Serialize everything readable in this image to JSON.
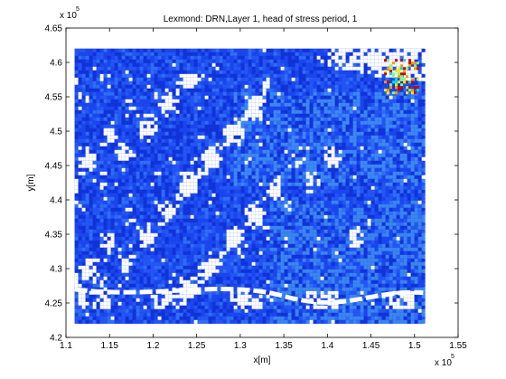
{
  "chart_data": {
    "type": "heatmap",
    "title": "Lexmond: DRN,Layer 1, head of stress period, 1",
    "xlabel": "x[m]",
    "ylabel": "y[m]",
    "xlim": [
      110000,
      155000
    ],
    "ylim": [
      420000,
      465000
    ],
    "x_ticks": [
      1.1,
      1.15,
      1.2,
      1.25,
      1.3,
      1.35,
      1.4,
      1.45,
      1.5,
      1.55
    ],
    "x_tick_labels": [
      "1.1",
      "1.15",
      "1.2",
      "1.25",
      "1.3",
      "1.35",
      "1.4",
      "1.45",
      "1.5",
      "1.55"
    ],
    "y_ticks": [
      4.2,
      4.25,
      4.3,
      4.35,
      4.4,
      4.45,
      4.5,
      4.55,
      4.6,
      4.65
    ],
    "y_tick_labels": [
      "4.2",
      "4.25",
      "4.3",
      "4.35",
      "4.4",
      "4.45",
      "4.5",
      "4.55",
      "4.6",
      "4.65"
    ],
    "x_exponent": "x 10",
    "x_exponent_power": "5",
    "y_exponent": "x 10",
    "y_exponent_power": "5",
    "data_extent": {
      "x": [
        111000,
        151000
      ],
      "y": [
        422000,
        462000
      ]
    },
    "colormap": "jet",
    "dominant_color": "#1a3fe8",
    "no_data_color": "#ffffff",
    "grid": false,
    "hotspot_region": {
      "x": [
        146500,
        150500
      ],
      "y": [
        455500,
        460500
      ],
      "colors": [
        "#ffe800",
        "#7cff7c",
        "#00d8ff",
        "#ff9900",
        "#cc0000"
      ]
    }
  }
}
